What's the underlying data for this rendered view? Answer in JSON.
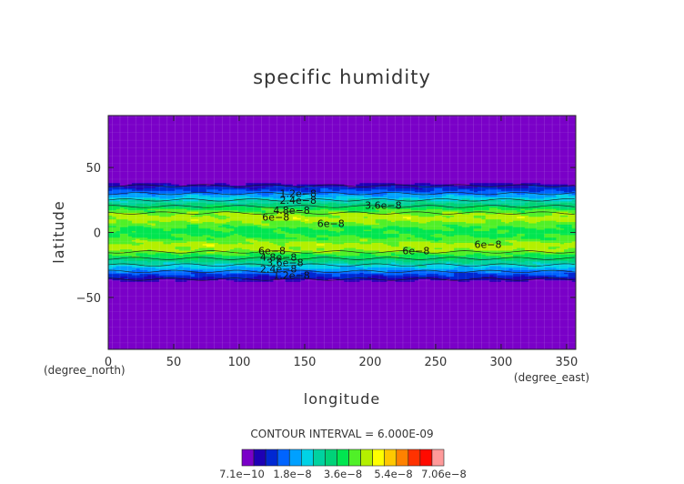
{
  "chart_data": {
    "type": "contour",
    "title": "specific humidity",
    "xlabel": "longitude",
    "ylabel": "latitude",
    "x_units": "(degree_east)",
    "y_units": "(degree_north)",
    "xlim": [
      0,
      357
    ],
    "ylim": [
      -90,
      90
    ],
    "x_ticks": [
      "0",
      "50",
      "100",
      "150",
      "200",
      "250",
      "300",
      "350"
    ],
    "y_ticks": [
      "50",
      "0",
      "−50"
    ],
    "contour_interval_text": "CONTOUR INTERVAL = 6.000E-09",
    "colorbar_labels": [
      "7.1e−10",
      "1.8e−8",
      "3.6e−8",
      "5.4e−8",
      "7.06e−8"
    ],
    "colorbar_colors": [
      "#7a00c8",
      "#1e00b4",
      "#0028d2",
      "#0064ff",
      "#00a0ff",
      "#00d2e6",
      "#00d2a0",
      "#00d278",
      "#00e650",
      "#50f028",
      "#b4f000",
      "#ffff00",
      "#ffc800",
      "#ff8200",
      "#ff3200",
      "#ff0a00",
      "#ff9a9a"
    ],
    "zonal_profile": {
      "latitude": [
        -90,
        -40,
        -35,
        -30,
        -25,
        -20,
        -15,
        -10,
        -5,
        0,
        5,
        10,
        15,
        20,
        25,
        30,
        35,
        40,
        90
      ],
      "value": [
        7.1e-10,
        7.1e-10,
        1.2e-08,
        2.4e-08,
        3.6e-08,
        4.8e-08,
        6e-08,
        6.4e-08,
        5.6e-08,
        5.2e-08,
        5.6e-08,
        6.4e-08,
        6e-08,
        4.8e-08,
        3.6e-08,
        2.4e-08,
        1.2e-08,
        7.1e-10,
        7.1e-10
      ]
    },
    "contour_labels": [
      {
        "text": "1.2e−8",
        "lon": 145,
        "lat": 30
      },
      {
        "text": "2.4e−8",
        "lon": 145,
        "lat": 25
      },
      {
        "text": "4.8e−8",
        "lon": 140,
        "lat": 17
      },
      {
        "text": "6e−8",
        "lon": 128,
        "lat": 12
      },
      {
        "text": "6e−8",
        "lon": 170,
        "lat": 7
      },
      {
        "text": "3.6e−8",
        "lon": 210,
        "lat": 21
      },
      {
        "text": "6e−8",
        "lon": 290,
        "lat": -9
      },
      {
        "text": "6e−8",
        "lon": 235,
        "lat": -14
      },
      {
        "text": "6e−8",
        "lon": 125,
        "lat": -14
      },
      {
        "text": "4.8e−8",
        "lon": 130,
        "lat": -19
      },
      {
        "text": "3.6e−8",
        "lon": 135,
        "lat": -23
      },
      {
        "text": "2.4e−8",
        "lon": 130,
        "lat": -28
      },
      {
        "text": "1.2e−8",
        "lon": 140,
        "lat": -33
      }
    ]
  }
}
